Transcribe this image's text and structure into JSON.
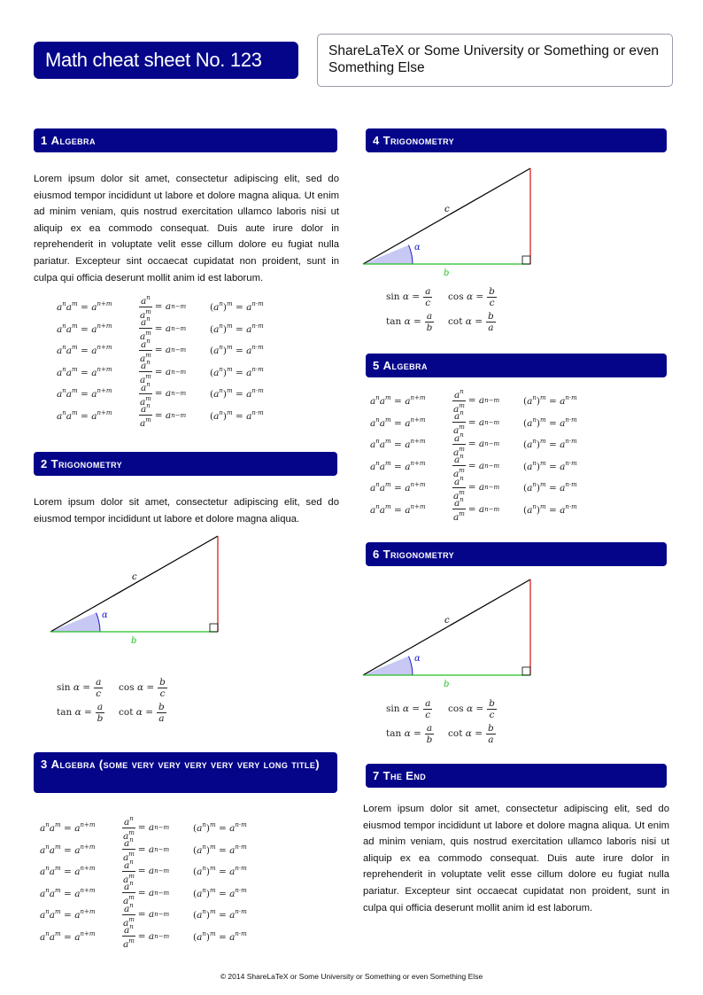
{
  "header": {
    "title": "Math cheat sheet No. 123",
    "subtitle": "ShareLaTeX or Some University or Something or even Something Else"
  },
  "sections": [
    {
      "number": "1",
      "title": "Algebra"
    },
    {
      "number": "2",
      "title": "Trigonometry"
    },
    {
      "number": "3",
      "title": "Algebra (some very very very very very long title)"
    },
    {
      "number": "4",
      "title": "Trigonometry"
    },
    {
      "number": "5",
      "title": "Algebra"
    },
    {
      "number": "6",
      "title": "Trigonometry"
    },
    {
      "number": "7",
      "title": "The End"
    }
  ],
  "paragraphs": {
    "lorem_long": "Lorem ipsum dolor sit amet, consectetur adipiscing elit, sed do eiusmod tempor incididunt ut labore et dolore magna aliqua.  Ut enim ad minim veniam, quis nostrud exercitation ullamco laboris nisi ut aliquip ex ea commodo consequat.  Duis aute irure dolor in reprehenderit in voluptate velit esse cillum dolore eu fugiat nulla pariatur.  Excepteur sint occaecat cupidatat non proident, sunt in culpa qui officia deserunt mollit anim id est laborum.",
    "lorem_short": "Lorem ipsum dolor sit amet, consectetur adipiscing elit, sed do eiusmod tempor incididunt ut labore et dolore magna aliqua."
  },
  "formula_rows": [
    {
      "base": "a",
      "n": "n",
      "m": "m",
      "sum": "n+m",
      "diff": "n−m",
      "prod": "n·m"
    },
    {
      "base": "a",
      "n": "n",
      "m": "m",
      "sum": "n+m",
      "diff": "n−m",
      "prod": "n·m"
    },
    {
      "base": "a",
      "n": "n",
      "m": "m",
      "sum": "n+m",
      "diff": "n−m",
      "prod": "n·m"
    },
    {
      "base": "a",
      "n": "n",
      "m": "m",
      "sum": "n+m",
      "diff": "n−m",
      "prod": "n·m"
    },
    {
      "base": "a",
      "n": "n",
      "m": "m",
      "sum": "n+m",
      "diff": "n−m",
      "prod": "n·m"
    },
    {
      "base": "a",
      "n": "n",
      "m": "m",
      "sum": "n+m",
      "diff": "n−m",
      "prod": "n·m"
    }
  ],
  "triangle": {
    "hyp": "c",
    "opp": "a",
    "adj": "b",
    "angle": "α",
    "colors": {
      "opp": "#d01010",
      "adj": "#20c020",
      "angle": "#1a1ad0",
      "angle_fill": "#c8c8f4"
    }
  },
  "trig": {
    "sin": "sin",
    "cos": "cos",
    "tan": "tan",
    "cot": "cot",
    "angle": "α",
    "sin_frac": [
      "a",
      "c"
    ],
    "cos_frac": [
      "b",
      "c"
    ],
    "tan_frac": [
      "a",
      "b"
    ],
    "cot_frac": [
      "b",
      "a"
    ]
  },
  "footer": "© 2014  ShareLaTeX or Some University or Something or even Something Else"
}
